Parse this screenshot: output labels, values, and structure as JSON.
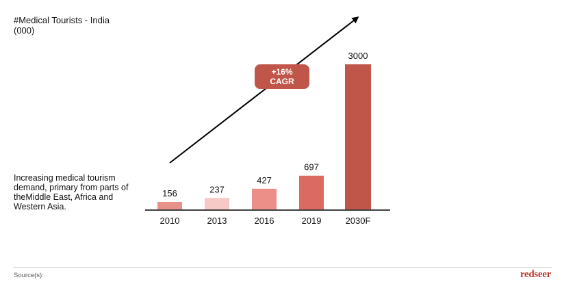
{
  "title": {
    "line1": "#Medical Tourists - India",
    "line2": "(000)"
  },
  "note": "Increasing medical tourism demand, primary from parts of theMiddle East, Africa and Western Asia.",
  "cagr": {
    "line1": "+16%",
    "line2": "CAGR",
    "color": "#c0554a"
  },
  "footer": {
    "source": "Source(s):",
    "logo": "redseer"
  },
  "colors": {
    "axis": "#000000",
    "arrow": "#000000"
  },
  "chart_data": {
    "type": "bar",
    "categories": [
      "2010",
      "2013",
      "2016",
      "2019",
      "2030F"
    ],
    "values": [
      156,
      237,
      427,
      697,
      3000
    ],
    "colors": [
      "#e8908a",
      "#f7c9c6",
      "#ec8f88",
      "#db6a62",
      "#c0554a"
    ],
    "ylim": [
      0,
      3000
    ],
    "title": "#Medical Tourists - India (000)",
    "xlabel": "",
    "ylabel": "",
    "grid": false,
    "annotation": "+16% CAGR"
  }
}
